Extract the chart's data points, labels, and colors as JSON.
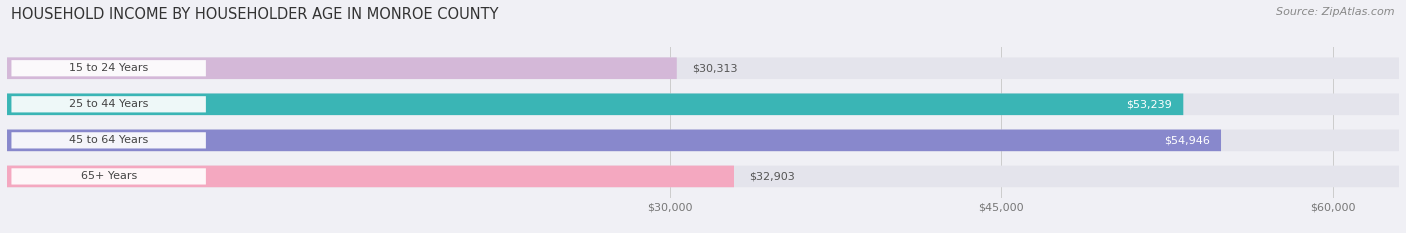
{
  "title": "HOUSEHOLD INCOME BY HOUSEHOLDER AGE IN MONROE COUNTY",
  "source": "Source: ZipAtlas.com",
  "categories": [
    "15 to 24 Years",
    "25 to 44 Years",
    "45 to 64 Years",
    "65+ Years"
  ],
  "values": [
    30313,
    53239,
    54946,
    32903
  ],
  "bar_colors": [
    "#d4b8d8",
    "#3ab5b5",
    "#8888cc",
    "#f4a8c0"
  ],
  "bar_labels": [
    "$30,313",
    "$53,239",
    "$54,946",
    "$32,903"
  ],
  "label_inside": [
    false,
    true,
    true,
    false
  ],
  "x_tick_labels": [
    "$30,000",
    "$45,000",
    "$60,000"
  ],
  "x_tick_values": [
    30000,
    45000,
    60000
  ],
  "xlim_min": 0,
  "xlim_max": 63000,
  "background_color": "#f0f0f5",
  "bar_bg_color": "#e4e4ec",
  "bar_height": 0.6,
  "title_fontsize": 10.5,
  "source_fontsize": 8,
  "label_fontsize": 8,
  "tick_fontsize": 8,
  "cat_fontsize": 8,
  "cat_label_bg": "#ffffff",
  "cat_label_color": "#444444",
  "value_label_inside_color": "#ffffff",
  "value_label_outside_color": "#555555"
}
